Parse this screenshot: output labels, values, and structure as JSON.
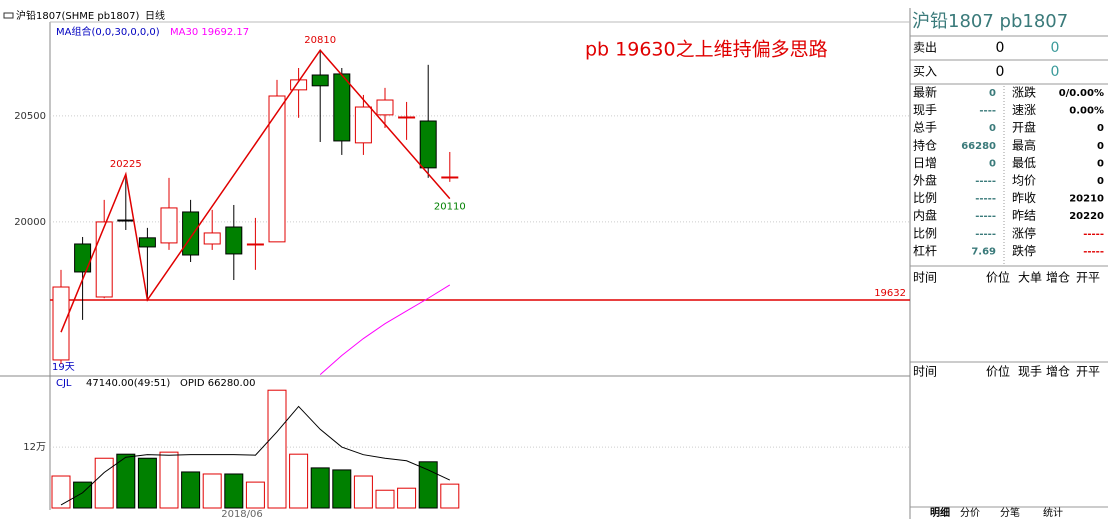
{
  "header": {
    "symbol": "沪铅1807(SHME pb1807)",
    "period": "日线"
  },
  "chart_data": {
    "type": "candlestick",
    "legend": "MA组合(0,0,30,0,0,0)",
    "ma_label": "MA30 19692.17",
    "annotation": "pb 19630之上维持偏多思路",
    "corner_label": "19天",
    "x_label": "2018/06",
    "ylim": [
      19278,
      20943
    ],
    "yticks": [
      20000,
      20500
    ],
    "grid": true,
    "up_color": "#e00000",
    "down_color": "#008000",
    "open": [
      19349,
      19896,
      19646,
      20009,
      19925,
      19901,
      20047,
      19896,
      19976,
      19896,
      19906,
      20623,
      20693,
      20698,
      20373,
      20505,
      20495,
      20476,
      20212
    ],
    "high": [
      19774,
      19929,
      20104,
      20225,
      19972,
      20208,
      20104,
      20057,
      20080,
      20019,
      20670,
      20726,
      20810,
      20726,
      20599,
      20632,
      20566,
      20741,
      20330
    ],
    "low": [
      19330,
      19538,
      19640,
      19962,
      19632,
      19868,
      19811,
      19868,
      19726,
      19774,
      19906,
      20491,
      20377,
      20316,
      20316,
      20443,
      20387,
      20208,
      20189
    ],
    "close": [
      19693,
      19764,
      20000,
      20005,
      19882,
      20066,
      19844,
      19948,
      19849,
      19896,
      20594,
      20670,
      20642,
      20382,
      20542,
      20575,
      20495,
      20255,
      20212
    ],
    "ma30": {
      "color": "#ff00ff",
      "values": [
        null,
        null,
        null,
        null,
        null,
        null,
        null,
        null,
        null,
        null,
        null,
        null,
        19280,
        19370,
        19450,
        19520,
        19580,
        19640,
        19703
      ]
    },
    "zigzag": {
      "color": "#e00000",
      "indices": [
        0,
        3,
        4,
        12,
        18
      ],
      "values": [
        19480,
        20225,
        19632,
        20810,
        20110
      ],
      "value_labels": [
        null,
        "20225",
        null,
        "20810",
        "20110"
      ]
    },
    "support": 19632
  },
  "volume_chart": {
    "type": "bar",
    "legend": "CJL",
    "value_text": "47140.00(49:51)",
    "opid": "OPID 66280.00",
    "ylim": [
      0,
      258000
    ],
    "yticks": [
      {
        "value": 120000,
        "label": "12万"
      }
    ],
    "values": [
      63000,
      51000,
      98000,
      106000,
      98000,
      110000,
      71000,
      67000,
      67000,
      51000,
      232000,
      106000,
      79000,
      75000,
      63000,
      35000,
      39000,
      91000,
      47000
    ],
    "ma": [
      6000,
      30000,
      70000,
      100000,
      105000,
      104000,
      105000,
      105000,
      105000,
      104000,
      150000,
      200000,
      155000,
      120000,
      105000,
      98000,
      93000,
      75000,
      55000
    ]
  },
  "quote": {
    "title": "沪铅1807  pb1807",
    "book": [
      [
        "卖出",
        "0",
        "0"
      ],
      [
        "买入",
        "0",
        "0"
      ]
    ],
    "rows": [
      [
        "最新",
        "0",
        "涨跌",
        "0/0.00%"
      ],
      [
        "现手",
        "----",
        "速涨",
        "0.00%"
      ],
      [
        "总手",
        "0",
        "开盘",
        "0"
      ],
      [
        "持仓",
        "66280",
        "最高",
        "0"
      ],
      [
        "日增",
        "0",
        "最低",
        "0"
      ],
      [
        "外盘",
        "-----",
        "均价",
        "0"
      ],
      [
        "比例",
        "-----",
        "昨收",
        "20210"
      ],
      [
        "内盘",
        "-----",
        "昨结",
        "20220"
      ],
      [
        "比例",
        "-----",
        "涨停",
        "-----"
      ],
      [
        "杠杆",
        "7.69",
        "跌停",
        "-----"
      ]
    ],
    "trade_header": [
      "时间",
      "价位",
      "大单",
      "增仓",
      "开平"
    ],
    "tick_header": [
      "时间",
      "价位",
      "现手",
      "增仓",
      "开平"
    ],
    "tabs": [
      "明细",
      "分价",
      "分笔",
      "统计"
    ]
  }
}
